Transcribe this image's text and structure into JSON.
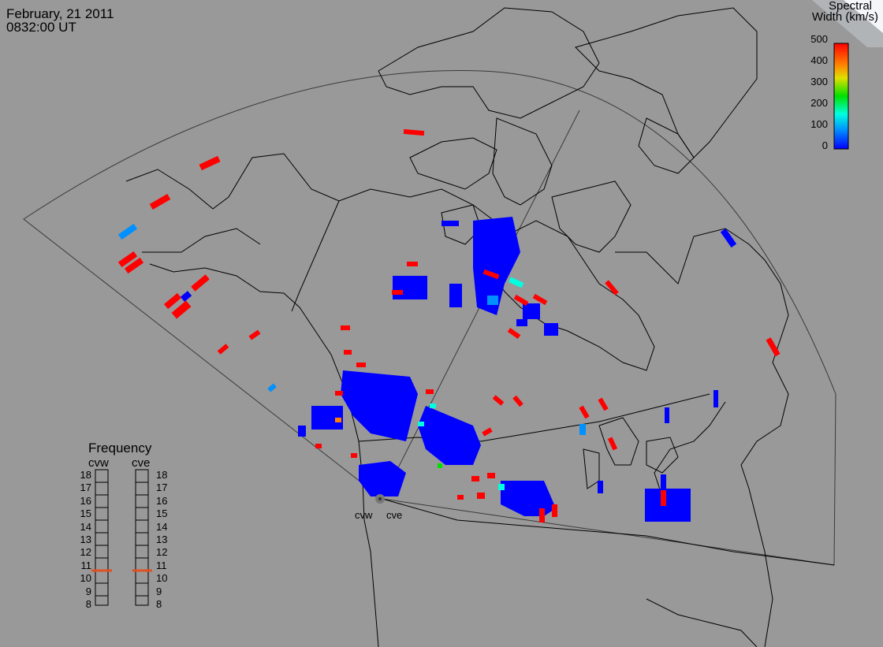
{
  "header": {
    "date": "February, 21 2011",
    "time": "0832:00 UT"
  },
  "colorbar": {
    "title_line1": "Spectral",
    "title_line2": "Width (km/s)",
    "ticks": [
      "500",
      "400",
      "300",
      "200",
      "100",
      "0"
    ],
    "colors": [
      "#0000ff",
      "#0090ff",
      "#00ffe0",
      "#00e000",
      "#e0e000",
      "#ff8000",
      "#ff0000"
    ]
  },
  "frequency_panel": {
    "title": "Frequency",
    "radar_left": "cvw",
    "radar_right": "cve",
    "scale": [
      "18",
      "17",
      "16",
      "15",
      "14",
      "13",
      "12",
      "11",
      "10",
      "9",
      "8"
    ],
    "cvw_frequency": 10.8,
    "cve_frequency": 10.8,
    "marker_color": "#e05020"
  },
  "stations": {
    "west": "cvw",
    "east": "cve"
  },
  "colors": {
    "background": "#999999",
    "coast": "#000000",
    "fov": "#444444",
    "low_width": "#0000ff",
    "high_width": "#ff0000",
    "mid_width": "#00ffe0"
  }
}
